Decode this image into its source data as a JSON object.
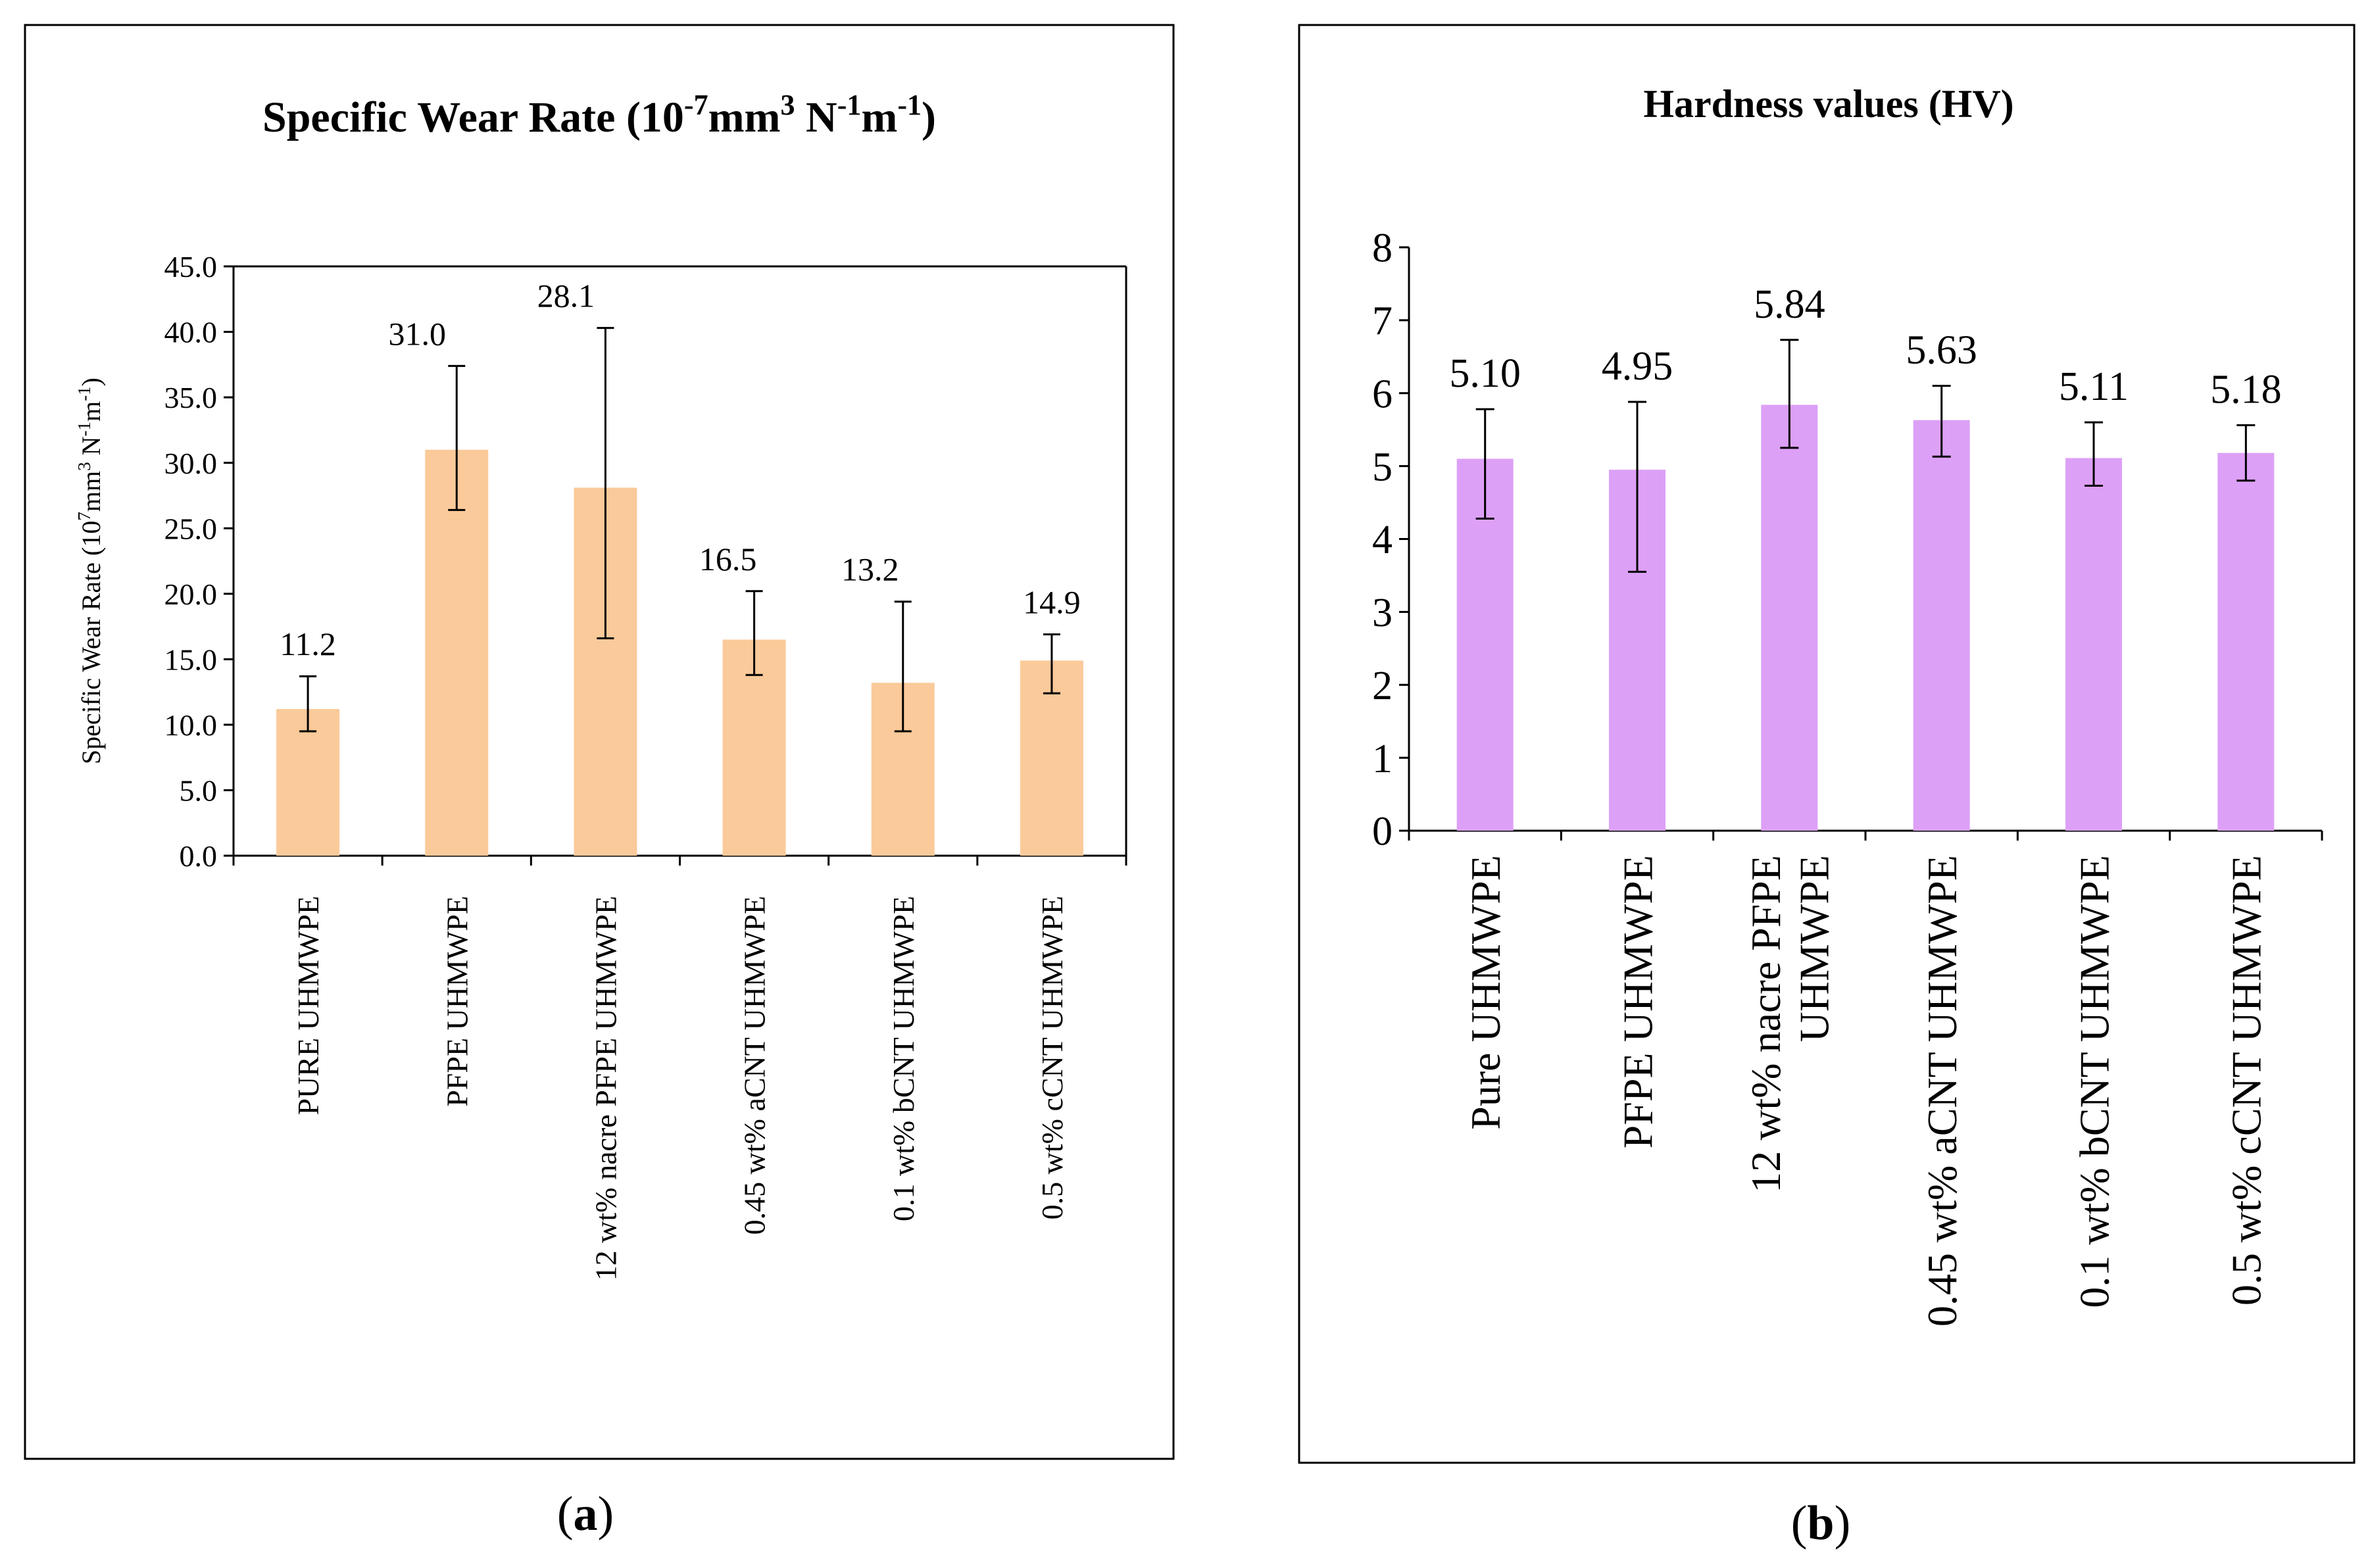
{
  "chart_data": [
    {
      "type": "bar",
      "panel_label": "a",
      "title": "Specific Wear Rate (10-7mm3 N-1m-1)",
      "title_parts": {
        "main": "Specific Wear Rate (10",
        "sup1": "-7",
        "mid1": "mm",
        "sup2": "3",
        "mid2": " N",
        "sup3": "-1",
        "mid3": "m",
        "sup4": "-1",
        "end": ")"
      },
      "ylabel": "Specific Wear Rate (107mm3 N-1m-1)",
      "ylabel_parts": {
        "main": "Specific Wear Rate (10",
        "sup1": "7",
        "mid1": "mm",
        "sup2": "3",
        "mid2": " N",
        "sup3": "-1",
        "mid3": "m",
        "sup4": "-1",
        "end": ")"
      },
      "xlabel": "",
      "ylim": [
        0,
        45
      ],
      "yticks": [
        "0.0",
        "5.0",
        "10.0",
        "15.0",
        "20.0",
        "25.0",
        "30.0",
        "35.0",
        "40.0",
        "45.0"
      ],
      "categories": [
        "PURE UHMWPE",
        "PFPE UHMWPE",
        "12 wt% nacre PFPE UHMWPE",
        "0.45 wt% aCNT UHMWPE",
        "0.1 wt% bCNT UHMWPE",
        "0.5 wt% cCNT UHMWPE"
      ],
      "category_lines": [
        [
          "PURE UHMWPE"
        ],
        [
          "PFPE UHMWPE"
        ],
        [
          "12 wt% nacre PFPE UHMWPE"
        ],
        [
          "0.45 wt% aCNT UHMWPE"
        ],
        [
          "0.1 wt% bCNT UHMWPE"
        ],
        [
          "0.5 wt% cCNT UHMWPE"
        ]
      ],
      "values": [
        11.2,
        31.0,
        28.1,
        16.5,
        13.2,
        14.9
      ],
      "value_labels": [
        "11.2",
        "31.0",
        "28.1",
        "16.5",
        "13.2",
        "14.9"
      ],
      "error_low": [
        9.5,
        26.4,
        16.6,
        13.8,
        9.5,
        12.4
      ],
      "error_high": [
        13.7,
        37.4,
        40.3,
        20.2,
        19.4,
        16.9
      ],
      "bar_color": "#FBCA9A",
      "grid": false
    },
    {
      "type": "bar",
      "panel_label": "b",
      "title": "Hardness values (HV)",
      "xlabel": "",
      "ylabel": "",
      "ylim": [
        0,
        8
      ],
      "yticks": [
        "0",
        "1",
        "2",
        "3",
        "4",
        "5",
        "6",
        "7",
        "8"
      ],
      "categories": [
        "Pure UHMWPE",
        "PFPE UHMWPE",
        "12 wt% nacre PFPE UHMWPE",
        "0.45 wt% aCNT UHMWPE",
        "0.1 wt% bCNT UHMWPE",
        "0.5 wt% cCNT UHMWPE"
      ],
      "category_lines": [
        [
          "Pure UHMWPE"
        ],
        [
          "PFPE UHMWPE"
        ],
        [
          "12 wt% nacre PFPE",
          "UHMWPE"
        ],
        [
          "0.45 wt% aCNT UHMWPE"
        ],
        [
          "0.1 wt% bCNT UHMWPE"
        ],
        [
          "0.5 wt% cCNT UHMWPE"
        ]
      ],
      "values": [
        5.1,
        4.95,
        5.84,
        5.63,
        5.11,
        5.18
      ],
      "value_labels": [
        "5.10",
        "4.95",
        "5.84",
        "5.63",
        "5.11",
        "5.18"
      ],
      "error_low": [
        4.28,
        3.55,
        5.25,
        5.13,
        4.73,
        4.8
      ],
      "error_high": [
        5.78,
        5.88,
        6.73,
        6.1,
        5.6,
        5.56
      ],
      "bar_color": "#DDA0F7",
      "grid": false
    }
  ]
}
